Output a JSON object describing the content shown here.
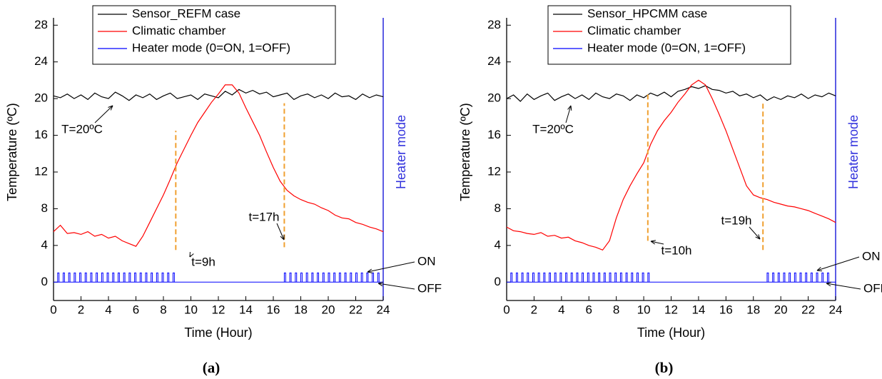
{
  "chart_data": [
    {
      "type": "line",
      "caption": "(a)",
      "xlabel": "Time (Hour)",
      "ylabel": "Temperature (ºC)",
      "y2label": "Heater mode",
      "xlim": [
        0,
        24
      ],
      "ylim": [
        -2,
        28.8
      ],
      "xticks": [
        0,
        2,
        4,
        6,
        8,
        10,
        12,
        14,
        16,
        18,
        20,
        22,
        24
      ],
      "yticks": [
        0,
        4,
        8,
        12,
        16,
        20,
        24,
        28
      ],
      "x": [
        0,
        0.5,
        1,
        1.5,
        2,
        2.5,
        3,
        3.5,
        4,
        4.5,
        5,
        5.5,
        6,
        6.5,
        7,
        7.5,
        8,
        8.5,
        9,
        9.5,
        10,
        10.5,
        11,
        11.5,
        12,
        12.5,
        13,
        13.5,
        14,
        14.5,
        15,
        15.5,
        16,
        16.5,
        17,
        17.5,
        18,
        18.5,
        19,
        19.5,
        20,
        20.5,
        21,
        21.5,
        22,
        22.5,
        23,
        23.5,
        24
      ],
      "series": [
        {
          "name": "Sensor_REFM case",
          "color": "#000000",
          "values": [
            20.3,
            20.1,
            20.5,
            20.0,
            20.4,
            19.9,
            20.6,
            20.2,
            20.0,
            20.7,
            20.3,
            19.8,
            20.4,
            20.1,
            20.5,
            19.9,
            20.3,
            20.6,
            20.0,
            20.2,
            20.4,
            19.9,
            20.5,
            20.3,
            20.1,
            20.8,
            20.4,
            21.0,
            20.6,
            20.9,
            20.5,
            20.7,
            20.2,
            20.4,
            20.6,
            19.9,
            20.3,
            20.5,
            20.1,
            20.4,
            20.0,
            20.6,
            20.2,
            20.3,
            19.9,
            20.5,
            20.1,
            20.4,
            20.2
          ]
        },
        {
          "name": "Climatic chamber",
          "color": "#ff0000",
          "values": [
            5.5,
            6.2,
            5.3,
            5.4,
            5.2,
            5.5,
            5.0,
            5.2,
            4.8,
            5.0,
            4.5,
            4.2,
            3.9,
            5.0,
            6.5,
            8.0,
            9.5,
            11.2,
            13.0,
            14.5,
            16.0,
            17.4,
            18.5,
            19.6,
            20.5,
            21.5,
            21.5,
            20.6,
            19.0,
            17.5,
            16.0,
            14.2,
            12.5,
            11.0,
            10.0,
            9.4,
            9.0,
            8.7,
            8.5,
            8.1,
            7.8,
            7.3,
            7.0,
            6.9,
            6.5,
            6.3,
            6.0,
            5.8,
            5.5
          ]
        },
        {
          "name": "Heater mode (0=ON, 1=OFF)",
          "color": "#0000ff",
          "style": "pulse",
          "off_value": 0,
          "width": 0.1,
          "x": [
            0.3,
            0.7,
            1.1,
            1.5,
            1.9,
            2.3,
            2.7,
            3.1,
            3.5,
            3.9,
            4.3,
            4.7,
            5.1,
            5.5,
            5.9,
            6.3,
            6.7,
            7.1,
            7.5,
            7.9,
            8.3,
            8.7,
            16.8,
            17.2,
            17.6,
            18.0,
            18.4,
            18.8,
            19.2,
            19.6,
            20.0,
            20.4,
            20.8,
            21.2,
            21.6,
            22.0,
            22.4,
            22.8,
            23.2,
            23.6
          ],
          "values": [
            1,
            1,
            1,
            1,
            1,
            1,
            1,
            1,
            1,
            1,
            1,
            1,
            1,
            1,
            1,
            1,
            1,
            1,
            1,
            1,
            1,
            1,
            1,
            1,
            1,
            1,
            1,
            1,
            1,
            1,
            1,
            1,
            1,
            1,
            1,
            1,
            1,
            1,
            1,
            1
          ]
        }
      ],
      "guides": [
        {
          "x": 8.9,
          "y_from": 3.5,
          "y_to": 16.5
        },
        {
          "x": 16.8,
          "y_from": 3.8,
          "y_to": 19.5
        }
      ],
      "annotations": [
        "T=20ºC",
        "t=9h",
        "t=17h",
        "ON",
        "OFF"
      ]
    },
    {
      "type": "line",
      "caption": "(b)",
      "xlabel": "Time (Hour)",
      "ylabel": "Temperature (ºC)",
      "y2label": "Heater mode",
      "xlim": [
        0,
        24
      ],
      "ylim": [
        -2,
        28.8
      ],
      "xticks": [
        0,
        2,
        4,
        6,
        8,
        10,
        12,
        14,
        16,
        18,
        20,
        22,
        24
      ],
      "yticks": [
        0,
        4,
        8,
        12,
        16,
        20,
        24,
        28
      ],
      "x": [
        0,
        0.5,
        1,
        1.5,
        2,
        2.5,
        3,
        3.5,
        4,
        4.5,
        5,
        5.5,
        6,
        6.5,
        7,
        7.5,
        8,
        8.5,
        9,
        9.5,
        10,
        10.5,
        11,
        11.5,
        12,
        12.5,
        13,
        13.5,
        14,
        14.5,
        15,
        15.5,
        16,
        16.5,
        17,
        17.5,
        18,
        18.5,
        19,
        19.5,
        20,
        20.5,
        21,
        21.5,
        22,
        22.5,
        23,
        23.5,
        24
      ],
      "series": [
        {
          "name": "Sensor_HPCMM case",
          "color": "#000000",
          "values": [
            20.0,
            20.4,
            19.7,
            20.5,
            19.9,
            20.3,
            20.6,
            19.8,
            20.2,
            20.5,
            20.0,
            20.4,
            19.9,
            20.6,
            20.2,
            20.0,
            20.5,
            20.3,
            19.8,
            20.4,
            20.1,
            20.6,
            20.3,
            20.7,
            20.2,
            20.8,
            21.0,
            21.3,
            21.1,
            21.4,
            21.0,
            20.9,
            20.6,
            20.8,
            20.3,
            20.5,
            20.1,
            20.4,
            19.8,
            20.2,
            19.9,
            20.3,
            20.1,
            20.5,
            20.0,
            20.4,
            20.2,
            20.6,
            20.3
          ]
        },
        {
          "name": "Climatic chamber",
          "color": "#ff0000",
          "values": [
            6.0,
            5.6,
            5.5,
            5.3,
            5.2,
            5.4,
            5.0,
            5.1,
            4.8,
            4.9,
            4.5,
            4.3,
            4.0,
            3.8,
            3.5,
            4.5,
            7.0,
            9.0,
            10.5,
            11.8,
            13.0,
            15.0,
            16.5,
            17.6,
            18.5,
            19.6,
            20.5,
            21.5,
            22.0,
            21.5,
            20.0,
            18.3,
            16.5,
            14.5,
            12.5,
            10.5,
            9.5,
            9.2,
            9.0,
            8.7,
            8.5,
            8.3,
            8.2,
            8.0,
            7.8,
            7.5,
            7.2,
            6.9,
            6.5
          ]
        },
        {
          "name": "Heater mode (0=ON, 1=OFF)",
          "color": "#0000ff",
          "style": "pulse",
          "off_value": 0,
          "width": 0.1,
          "x": [
            0.3,
            0.7,
            1.1,
            1.5,
            1.9,
            2.3,
            2.7,
            3.1,
            3.5,
            3.9,
            4.3,
            4.7,
            5.1,
            5.5,
            5.9,
            6.3,
            6.7,
            7.1,
            7.5,
            7.9,
            8.3,
            8.7,
            9.1,
            9.5,
            9.9,
            10.3,
            19.0,
            19.4,
            19.8,
            20.2,
            20.6,
            21.0,
            21.4,
            21.8,
            22.2,
            22.6,
            23.0,
            23.4
          ],
          "values": [
            1,
            1,
            1,
            1,
            1,
            1,
            1,
            1,
            1,
            1,
            1,
            1,
            1,
            1,
            1,
            1,
            1,
            1,
            1,
            1,
            1,
            1,
            1,
            1,
            1,
            1,
            1,
            1,
            1,
            1,
            1,
            1,
            1,
            1,
            1,
            1,
            1,
            1
          ]
        }
      ],
      "guides": [
        {
          "x": 10.3,
          "y_from": 4.5,
          "y_to": 20.5
        },
        {
          "x": 18.7,
          "y_from": 3.5,
          "y_to": 19.5
        }
      ],
      "annotations": [
        "T=20ºC",
        "t=10h",
        "t=19h",
        "ON",
        "OFF"
      ]
    }
  ]
}
